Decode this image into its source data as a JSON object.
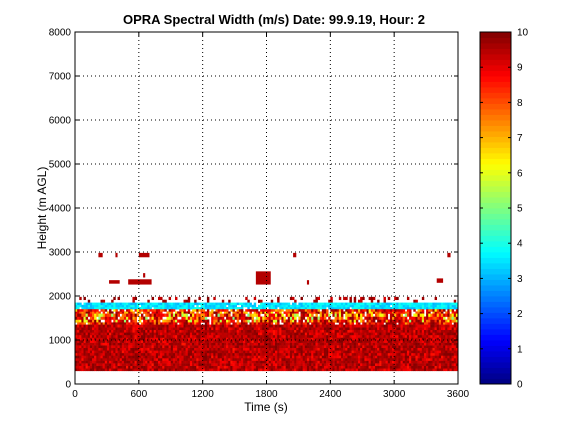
{
  "chart_data": {
    "type": "heatmap",
    "title": "OPRA Spectral Width (m/s)  Date: 99.9.19, Hour: 2",
    "xlabel": "Time (s)",
    "ylabel": "Height (m AGL)",
    "xlim": [
      0,
      3600
    ],
    "ylim": [
      0,
      8000
    ],
    "xticks": [
      0,
      600,
      1200,
      1800,
      2400,
      3000,
      3600
    ],
    "yticks": [
      0,
      1000,
      2000,
      3000,
      4000,
      5000,
      6000,
      7000,
      8000
    ],
    "grid": true,
    "colorbar": {
      "range": [
        0,
        10
      ],
      "ticks": [
        0,
        1,
        2,
        3,
        4,
        5,
        6,
        7,
        8,
        9,
        10
      ],
      "colormap": "jet"
    },
    "layers": [
      {
        "y0": 1850,
        "y1": 1980,
        "coverage": 0.25,
        "vmin": 9.0,
        "vmax": 10.0
      },
      {
        "y0": 1700,
        "y1": 1850,
        "value_min": 3.0,
        "value_max": 4.0,
        "coverage": 0.95
      },
      {
        "y0": 1600,
        "y1": 1700,
        "coverage": 0.85,
        "vmin": 6.0,
        "vmax": 10.0
      },
      {
        "y0": 1400,
        "y1": 1600,
        "coverage": 0.9,
        "vmin": 4.5,
        "vmax": 10.0
      },
      {
        "y0": 1350,
        "y1": 1400,
        "coverage": 0.9,
        "vmin": 7.0,
        "vmax": 10.0
      },
      {
        "y0": 300,
        "y1": 1350,
        "coverage": 1.0,
        "vmin": 8.5,
        "vmax": 10.0
      }
    ],
    "patches": [
      {
        "x0": 220,
        "x1": 260,
        "y0": 2880,
        "y1": 2980,
        "value": 9.5
      },
      {
        "x0": 380,
        "x1": 400,
        "y0": 2880,
        "y1": 2980,
        "value": 9.5
      },
      {
        "x0": 600,
        "x1": 700,
        "y0": 2880,
        "y1": 2980,
        "value": 9.5
      },
      {
        "x0": 2050,
        "x1": 2080,
        "y0": 2880,
        "y1": 2980,
        "value": 9.5
      },
      {
        "x0": 3500,
        "x1": 3530,
        "y0": 2880,
        "y1": 2980,
        "value": 9.5
      },
      {
        "x0": 320,
        "x1": 420,
        "y0": 2280,
        "y1": 2360,
        "value": 9.5
      },
      {
        "x0": 500,
        "x1": 720,
        "y0": 2260,
        "y1": 2380,
        "value": 9.5
      },
      {
        "x0": 640,
        "x1": 660,
        "y0": 2420,
        "y1": 2520,
        "value": 9.5
      },
      {
        "x0": 1700,
        "x1": 1840,
        "y0": 2260,
        "y1": 2560,
        "value": 9.5
      },
      {
        "x0": 2180,
        "x1": 2200,
        "y0": 2260,
        "y1": 2360,
        "value": 9.5
      },
      {
        "x0": 3400,
        "x1": 3460,
        "y0": 2300,
        "y1": 2400,
        "value": 9.5
      }
    ]
  }
}
